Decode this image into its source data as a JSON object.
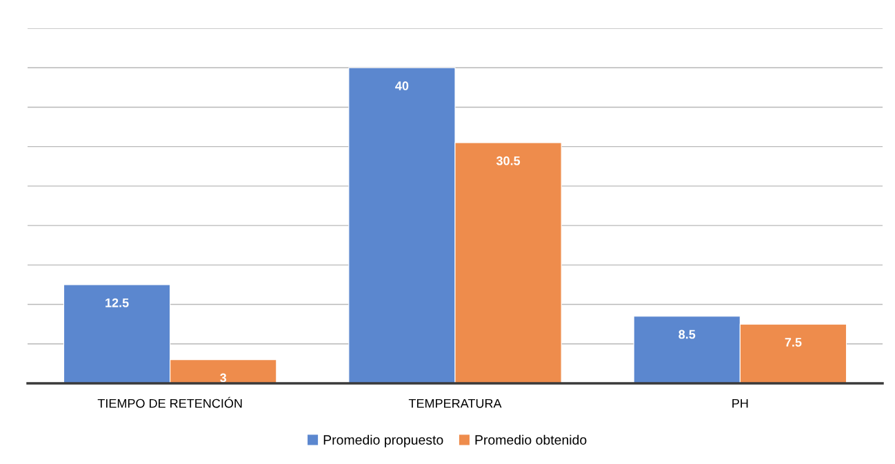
{
  "chart_data": {
    "type": "bar",
    "categories": [
      "TIEMPO DE RETENCIÓN",
      "TEMPERATURA",
      "PH"
    ],
    "series": [
      {
        "name": "Promedio propuesto",
        "color": "#5b87cf",
        "values": [
          12.5,
          40,
          8.5
        ]
      },
      {
        "name": "Promedio obtenido",
        "color": "#ee8c4c",
        "values": [
          3,
          30.5,
          7.5
        ]
      }
    ],
    "ylim": [
      0,
      45
    ],
    "yticks": [
      {
        "value": 0,
        "label": null
      },
      {
        "value": 5,
        "label": null
      },
      {
        "value": 10,
        "label": null
      },
      {
        "value": 15,
        "label": null
      },
      {
        "value": 20,
        "label": null
      },
      {
        "value": 25,
        "label": null
      },
      {
        "value": 30,
        "label": null
      },
      {
        "value": 35,
        "label": null
      },
      {
        "value": 40,
        "label": null
      },
      {
        "value": 45,
        "label": null
      }
    ],
    "tick_labels": "x",
    "grid": "y",
    "legend": "bottom",
    "data_labels": true
  }
}
